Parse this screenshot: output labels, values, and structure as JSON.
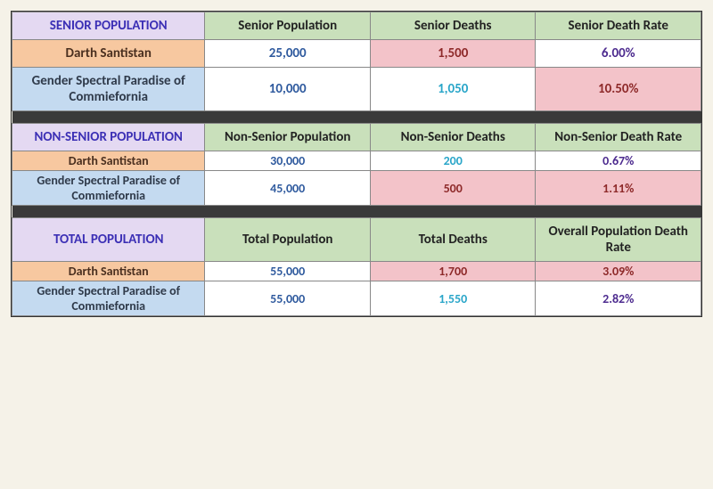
{
  "colors": {
    "purple_header_bg": "#e4d9f2",
    "purple_header_text": "#3b2fb5",
    "green_header_bg": "#c9e0bb",
    "orange_row_bg": "#f7c8a0",
    "blue_row_bg": "#c4daf0",
    "pink_cell_bg": "#f3c3c9",
    "spacer_bg": "#3a3a3a",
    "navy_text": "#2f5a9e",
    "darkred_text": "#8e2a2a",
    "cyan_text": "#2aa6c9",
    "purple_text": "#4d2b8f"
  },
  "sections": [
    {
      "title": "SENIOR POPULATION",
      "headers": [
        "Senior Population",
        "Senior Deaths",
        "Senior Death Rate"
      ],
      "compact": false,
      "rows": [
        {
          "label": "Darth Santistan",
          "label_style": "orange",
          "cells": [
            {
              "value": "25,000",
              "bg": "white",
              "text": "navy"
            },
            {
              "value": "1,500",
              "bg": "pink",
              "text": "darkred"
            },
            {
              "value": "6.00%",
              "bg": "white",
              "text": "purple"
            }
          ]
        },
        {
          "label": "Gender Spectral Paradise of Commiefornia",
          "label_style": "blue",
          "cells": [
            {
              "value": "10,000",
              "bg": "white",
              "text": "navy"
            },
            {
              "value": "1,050",
              "bg": "white",
              "text": "cyan"
            },
            {
              "value": "10.50%",
              "bg": "pink",
              "text": "darkred"
            }
          ]
        }
      ]
    },
    {
      "title": "NON-SENIOR POPULATION",
      "headers": [
        "Non-Senior Population",
        "Non-Senior Deaths",
        "Non-Senior Death Rate"
      ],
      "compact": true,
      "rows": [
        {
          "label": "Darth Santistan",
          "label_style": "orange",
          "cells": [
            {
              "value": "30,000",
              "bg": "white",
              "text": "navy"
            },
            {
              "value": "200",
              "bg": "white",
              "text": "cyan"
            },
            {
              "value": "0.67%",
              "bg": "white",
              "text": "purple"
            }
          ]
        },
        {
          "label": "Gender Spectral Paradise of Commiefornia",
          "label_style": "blue",
          "cells": [
            {
              "value": "45,000",
              "bg": "white",
              "text": "navy"
            },
            {
              "value": "500",
              "bg": "pink",
              "text": "darkred"
            },
            {
              "value": "1.11%",
              "bg": "pink",
              "text": "darkred"
            }
          ]
        }
      ]
    },
    {
      "title": "TOTAL POPULATION",
      "headers": [
        "Total Population",
        "Total Deaths",
        "Overall Population Death Rate"
      ],
      "compact": true,
      "rows": [
        {
          "label": "Darth Santistan",
          "label_style": "orange",
          "cells": [
            {
              "value": "55,000",
              "bg": "white",
              "text": "navy"
            },
            {
              "value": "1,700",
              "bg": "pink",
              "text": "darkred"
            },
            {
              "value": "3.09%",
              "bg": "pink",
              "text": "darkred"
            }
          ]
        },
        {
          "label": "Gender Spectral Paradise of Commiefornia",
          "label_style": "blue",
          "cells": [
            {
              "value": "55,000",
              "bg": "white",
              "text": "navy"
            },
            {
              "value": "1,550",
              "bg": "white",
              "text": "cyan"
            },
            {
              "value": "2.82%",
              "bg": "white",
              "text": "purple"
            }
          ]
        }
      ]
    }
  ]
}
